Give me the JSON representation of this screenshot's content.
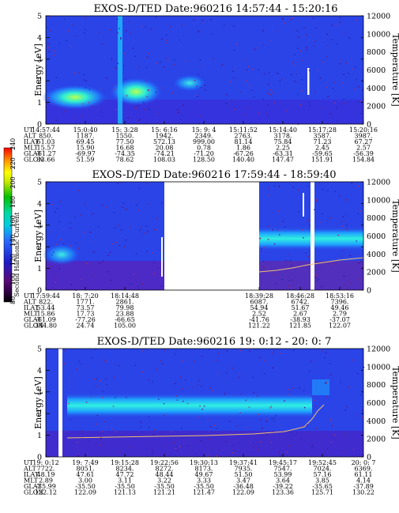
{
  "colorbar": {
    "label": "Second Harmonic Current",
    "ticks": [
      "240",
      "220",
      "200",
      "180",
      "160",
      "140",
      "120",
      "100",
      "80"
    ]
  },
  "shared": {
    "ylabel_left": "Energy [eV]",
    "ylabel_right": "Temperature [K]",
    "left_ticks": [
      "5",
      "4",
      "3",
      "2",
      "1",
      "0"
    ],
    "right_ticks": [
      "12000",
      "10000",
      "8000",
      "6000",
      "4000",
      "2000",
      "0"
    ],
    "row_labels": [
      "UT",
      "ALT",
      "ILAT",
      "MLT",
      "GLAT",
      "GLON"
    ]
  },
  "chart_data": [
    {
      "type": "heatmap",
      "title": "EXOS-D/TED   Date:960216  14:57:44 - 15:20:16",
      "ylim": [
        0,
        5
      ],
      "y2lim": [
        0,
        12000
      ],
      "grid": false,
      "time_labels": [
        "14:57:44",
        "15:0:40",
        "15: 3:28",
        "15: 6:16",
        "15: 9: 4",
        "15:11:52",
        "15:14:40",
        "15:17:28",
        "15:20:16"
      ],
      "table": {
        "ALT": [
          "850.",
          "1187.",
          "1550.",
          "1942.",
          "2349.",
          "2763.",
          "3178.",
          "3587.",
          "3987."
        ],
        "ILAT": [
          "61.03",
          "69.45",
          "77.50",
          "572.13",
          "999.00",
          "81.14",
          "75.84",
          "71.23",
          "67.27"
        ],
        "MLT": [
          "15.57",
          "15.90",
          "16.68",
          "20.08",
          "0.78",
          "1.86",
          "2.25",
          "2.45",
          "2.57"
        ],
        "GLAT": [
          "-61.27",
          "-69.97",
          "-74.35",
          "-74.21",
          "-71.20",
          "-67.26",
          "-63.31",
          "-59.65",
          "-56.39"
        ],
        "GLON": [
          "33.66",
          "51.59",
          "78.62",
          "108.03",
          "128.50",
          "140.40",
          "147.47",
          "151.91",
          "154.84"
        ]
      }
    },
    {
      "type": "heatmap",
      "title": "EXOS-D/TED   Date:960216  17:59:44 - 18:59:40",
      "ylim": [
        0,
        5
      ],
      "y2lim": [
        0,
        12000
      ],
      "grid": false,
      "time_labels": [
        "17:59:44",
        "18: 7:20",
        "18:14:48",
        "18:39:28",
        "18:46:28",
        "18:53:16"
      ],
      "table": {
        "ALT": [
          "822.",
          "1771.",
          "2861.",
          "6087.",
          "6742.",
          "7396."
        ],
        "ILAT": [
          "53.44",
          "73.57",
          "79.98",
          "54.94",
          "51.67",
          "49.46"
        ],
        "MLT": [
          "15.86",
          "17.73",
          "23.88",
          "2.52",
          "2.67",
          "2.79"
        ],
        "GLAT": [
          "-61.09",
          "-77.26",
          "-66.65",
          "-41.76",
          "-38.93",
          "-37.07"
        ],
        "GLON": [
          "344.80",
          "24.74",
          "105.00",
          "121.22",
          "121.85",
          "122.07"
        ]
      }
    },
    {
      "type": "heatmap",
      "title": "EXOS-D/TED   Date:960216  19: 0:12 - 20: 0: 7",
      "ylim": [
        0,
        5
      ],
      "y2lim": [
        0,
        12000
      ],
      "grid": false,
      "time_labels": [
        "19: 0:12",
        "19: 7:49",
        "19:15:28",
        "19:22:56",
        "19:30:13",
        "19:37:41",
        "19:45:17",
        "19:52:45",
        "20: 0: 7"
      ],
      "table": {
        "ALT": [
          "7722.",
          "8051.",
          "8234.",
          "8272.",
          "8173.",
          "7935.",
          "7547.",
          "7024.",
          "6369."
        ],
        "ILAT": [
          "48.19",
          "47.61",
          "47.72",
          "48.44",
          "49.67",
          "51.50",
          "53.99",
          "57.16",
          "61.11"
        ],
        "MLT": [
          "2.89",
          "3.00",
          "3.11",
          "3.22",
          "3.33",
          "3.47",
          "3.64",
          "3.85",
          "4.14"
        ],
        "GLAT": [
          "-35.99",
          "-35.50",
          "-35.50",
          "-35.50",
          "-35.50",
          "-36.48",
          "-39.22",
          "-35.65",
          "-37.89"
        ],
        "GLON": [
          "122.12",
          "122.09",
          "121.13",
          "121.21",
          "121.47",
          "122.09",
          "123.36",
          "125.71",
          "130.22"
        ]
      }
    }
  ]
}
